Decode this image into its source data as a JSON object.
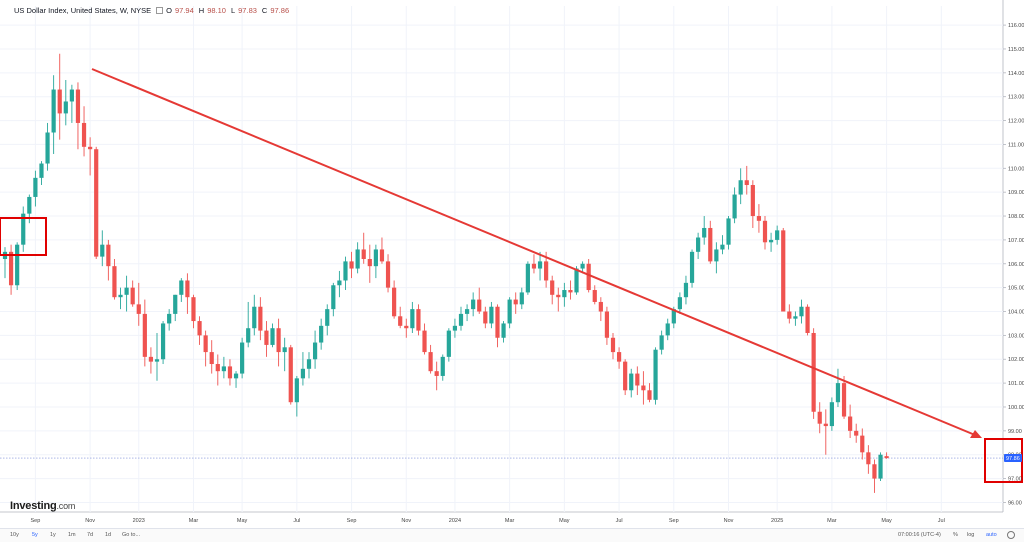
{
  "header": {
    "symbol": "US Dollar Index, United States, W, NYSE",
    "open_label": "O",
    "open": "97.94",
    "high_label": "H",
    "high": "98.10",
    "low_label": "L",
    "low": "97.83",
    "close_label": "C",
    "close": "97.86"
  },
  "colors": {
    "up": "#26a69a",
    "down": "#ef5350",
    "trendline": "#e53935",
    "highlight": "#e00000",
    "price_badge": "#2962ff"
  },
  "logo": {
    "text": "Investing",
    "suffix": ".com"
  },
  "toolbar": {
    "ranges": [
      "10y",
      "5y",
      "1y",
      "1m",
      "7d",
      "1d"
    ],
    "active_range": "5y",
    "goto": "Go to...",
    "time": "07:00:16 (UTC-4)",
    "pct": "%",
    "log": "log",
    "auto": "auto"
  },
  "chart_data": {
    "type": "candlestick",
    "timeframe": "weekly",
    "ylim": [
      95.6,
      116.8
    ],
    "y_ticks": [
      96.0,
      97.0,
      98.0,
      99.0,
      100.0,
      101.0,
      102.0,
      103.0,
      104.0,
      105.0,
      106.0,
      107.0,
      108.0,
      109.0,
      110.0,
      111.0,
      112.0,
      113.0,
      114.0,
      115.0,
      116.0
    ],
    "y_tick_labels": [
      "96.00",
      "97.00",
      "98.00",
      "99.00",
      "100.00",
      "101.00",
      "102.00",
      "103.00",
      "104.00",
      "105.00",
      "106.00",
      "107.00",
      "108.00",
      "109.00",
      "110.00",
      "111.00",
      "112.00",
      "113.00",
      "114.00",
      "115.00",
      "116.00"
    ],
    "x_ticks": [
      {
        "label": "Sep",
        "week": 5
      },
      {
        "label": "Nov",
        "week": 14
      },
      {
        "label": "2023",
        "week": 22
      },
      {
        "label": "Mar",
        "week": 31
      },
      {
        "label": "May",
        "week": 39
      },
      {
        "label": "Jul",
        "week": 48
      },
      {
        "label": "Sep",
        "week": 57
      },
      {
        "label": "Nov",
        "week": 66
      },
      {
        "label": "2024",
        "week": 74
      },
      {
        "label": "Mar",
        "week": 83
      },
      {
        "label": "May",
        "week": 92
      },
      {
        "label": "Jul",
        "week": 101
      },
      {
        "label": "Sep",
        "week": 110
      },
      {
        "label": "Nov",
        "week": 119
      },
      {
        "label": "2025",
        "week": 127
      },
      {
        "label": "Mar",
        "week": 136
      },
      {
        "label": "May",
        "week": 145
      },
      {
        "label": "Jul",
        "week": 154
      }
    ],
    "last_price": 97.86,
    "last_price_label": "97.86",
    "candles": [
      [
        106.2,
        106.7,
        105.4,
        106.5
      ],
      [
        106.5,
        106.8,
        104.7,
        105.1
      ],
      [
        105.1,
        106.9,
        104.9,
        106.8
      ],
      [
        106.8,
        108.4,
        106.5,
        108.1
      ],
      [
        108.1,
        108.9,
        107.7,
        108.8
      ],
      [
        108.8,
        109.9,
        108.4,
        109.6
      ],
      [
        109.6,
        110.3,
        109.3,
        110.2
      ],
      [
        110.2,
        111.9,
        109.9,
        111.5
      ],
      [
        111.5,
        113.9,
        110.6,
        113.3
      ],
      [
        113.3,
        114.8,
        111.2,
        112.3
      ],
      [
        112.3,
        113.7,
        111.8,
        112.8
      ],
      [
        112.8,
        113.5,
        111.9,
        113.3
      ],
      [
        113.3,
        113.6,
        110.8,
        111.9
      ],
      [
        111.9,
        112.6,
        110.5,
        110.9
      ],
      [
        110.9,
        111.3,
        109.7,
        110.8
      ],
      [
        110.8,
        110.9,
        106.2,
        106.3
      ],
      [
        106.3,
        107.4,
        105.9,
        106.8
      ],
      [
        106.8,
        107.0,
        105.3,
        105.9
      ],
      [
        105.9,
        106.2,
        104.5,
        104.6
      ],
      [
        104.6,
        105.0,
        104.1,
        104.7
      ],
      [
        104.7,
        105.5,
        104.0,
        105.0
      ],
      [
        105.0,
        105.3,
        104.2,
        104.3
      ],
      [
        104.3,
        105.2,
        103.4,
        103.9
      ],
      [
        103.9,
        104.5,
        101.7,
        102.1
      ],
      [
        102.1,
        102.5,
        101.4,
        101.9
      ],
      [
        101.9,
        103.1,
        101.1,
        102.0
      ],
      [
        102.0,
        103.6,
        101.8,
        103.5
      ],
      [
        103.5,
        104.1,
        103.2,
        103.9
      ],
      [
        103.9,
        104.7,
        103.6,
        104.7
      ],
      [
        104.7,
        105.4,
        104.4,
        105.3
      ],
      [
        105.3,
        105.6,
        103.9,
        104.6
      ],
      [
        104.6,
        104.7,
        103.3,
        103.6
      ],
      [
        103.6,
        103.8,
        102.6,
        103.0
      ],
      [
        103.0,
        103.2,
        101.7,
        102.3
      ],
      [
        102.3,
        102.8,
        101.4,
        101.8
      ],
      [
        101.8,
        102.2,
        100.9,
        101.5
      ],
      [
        101.5,
        102.1,
        101.2,
        101.7
      ],
      [
        101.7,
        102.0,
        100.9,
        101.2
      ],
      [
        101.2,
        101.5,
        100.8,
        101.4
      ],
      [
        101.4,
        102.9,
        101.2,
        102.7
      ],
      [
        102.7,
        104.4,
        102.5,
        103.3
      ],
      [
        103.3,
        104.7,
        103.0,
        104.2
      ],
      [
        104.2,
        104.6,
        102.8,
        103.2
      ],
      [
        103.2,
        103.6,
        102.1,
        102.6
      ],
      [
        102.6,
        103.5,
        102.5,
        103.3
      ],
      [
        103.3,
        103.7,
        101.7,
        102.3
      ],
      [
        102.3,
        102.9,
        101.5,
        102.5
      ],
      [
        102.5,
        102.6,
        100.1,
        100.2
      ],
      [
        100.2,
        101.3,
        99.6,
        101.2
      ],
      [
        101.2,
        102.3,
        100.9,
        101.6
      ],
      [
        101.6,
        102.3,
        101.2,
        102.0
      ],
      [
        102.0,
        103.2,
        101.6,
        102.7
      ],
      [
        102.7,
        103.7,
        102.4,
        103.4
      ],
      [
        103.4,
        104.3,
        103.0,
        104.1
      ],
      [
        104.1,
        105.2,
        103.8,
        105.1
      ],
      [
        105.1,
        105.7,
        104.6,
        105.3
      ],
      [
        105.3,
        106.3,
        104.9,
        106.1
      ],
      [
        106.1,
        106.5,
        105.4,
        105.8
      ],
      [
        105.8,
        106.9,
        105.6,
        106.6
      ],
      [
        106.6,
        107.3,
        106.0,
        106.2
      ],
      [
        106.2,
        106.8,
        105.2,
        105.9
      ],
      [
        105.9,
        106.8,
        105.4,
        106.6
      ],
      [
        106.6,
        107.1,
        106.0,
        106.1
      ],
      [
        106.1,
        106.4,
        104.8,
        105.0
      ],
      [
        105.0,
        105.3,
        103.7,
        103.8
      ],
      [
        103.8,
        104.2,
        103.3,
        103.4
      ],
      [
        103.4,
        103.7,
        102.9,
        103.3
      ],
      [
        103.3,
        104.4,
        103.1,
        104.1
      ],
      [
        104.1,
        104.3,
        103.0,
        103.2
      ],
      [
        103.2,
        103.5,
        102.2,
        102.3
      ],
      [
        102.3,
        102.6,
        101.4,
        101.5
      ],
      [
        101.5,
        101.9,
        100.7,
        101.3
      ],
      [
        101.3,
        102.2,
        101.1,
        102.1
      ],
      [
        102.1,
        103.3,
        101.9,
        103.2
      ],
      [
        103.2,
        103.7,
        102.9,
        103.4
      ],
      [
        103.4,
        104.2,
        103.2,
        103.9
      ],
      [
        103.9,
        104.3,
        103.6,
        104.1
      ],
      [
        104.1,
        104.8,
        103.8,
        104.5
      ],
      [
        104.5,
        105.0,
        103.9,
        104.0
      ],
      [
        104.0,
        104.2,
        103.3,
        103.5
      ],
      [
        103.5,
        104.4,
        103.3,
        104.2
      ],
      [
        104.2,
        104.3,
        102.5,
        102.9
      ],
      [
        102.9,
        103.6,
        102.7,
        103.5
      ],
      [
        103.5,
        104.6,
        103.3,
        104.5
      ],
      [
        104.5,
        104.8,
        103.9,
        104.3
      ],
      [
        104.3,
        105.0,
        104.1,
        104.8
      ],
      [
        104.8,
        106.1,
        104.7,
        106.0
      ],
      [
        106.0,
        106.4,
        105.6,
        105.8
      ],
      [
        105.8,
        106.5,
        105.3,
        106.1
      ],
      [
        106.1,
        106.5,
        105.0,
        105.3
      ],
      [
        105.3,
        105.5,
        104.3,
        104.7
      ],
      [
        104.7,
        105.0,
        104.0,
        104.6
      ],
      [
        104.6,
        105.2,
        104.2,
        104.9
      ],
      [
        104.9,
        105.3,
        104.5,
        104.8
      ],
      [
        104.8,
        105.9,
        104.7,
        105.8
      ],
      [
        105.8,
        106.1,
        105.6,
        106.0
      ],
      [
        106.0,
        106.2,
        104.8,
        104.9
      ],
      [
        104.9,
        105.1,
        104.3,
        104.4
      ],
      [
        104.4,
        104.6,
        103.6,
        104.0
      ],
      [
        104.0,
        104.2,
        102.6,
        102.9
      ],
      [
        102.9,
        103.1,
        102.0,
        102.3
      ],
      [
        102.3,
        102.5,
        101.6,
        101.9
      ],
      [
        101.9,
        102.0,
        100.5,
        100.7
      ],
      [
        100.7,
        101.6,
        100.4,
        101.4
      ],
      [
        101.4,
        101.7,
        100.5,
        100.9
      ],
      [
        100.9,
        101.5,
        100.1,
        100.7
      ],
      [
        100.7,
        101.0,
        100.2,
        100.3
      ],
      [
        100.3,
        102.5,
        100.1,
        102.4
      ],
      [
        102.4,
        103.2,
        102.2,
        103.0
      ],
      [
        103.0,
        103.7,
        102.8,
        103.5
      ],
      [
        103.5,
        104.2,
        103.3,
        104.1
      ],
      [
        104.1,
        104.8,
        103.9,
        104.6
      ],
      [
        104.6,
        105.5,
        104.3,
        105.2
      ],
      [
        105.2,
        106.6,
        105.0,
        106.5
      ],
      [
        106.5,
        107.3,
        106.2,
        107.1
      ],
      [
        107.1,
        108.0,
        106.8,
        107.5
      ],
      [
        107.5,
        107.8,
        106.0,
        106.1
      ],
      [
        106.1,
        106.9,
        105.6,
        106.6
      ],
      [
        106.6,
        107.2,
        106.4,
        106.8
      ],
      [
        106.8,
        108.0,
        106.6,
        107.9
      ],
      [
        107.9,
        109.2,
        107.7,
        108.9
      ],
      [
        108.9,
        110.0,
        108.5,
        109.5
      ],
      [
        109.5,
        110.1,
        108.9,
        109.3
      ],
      [
        109.3,
        109.5,
        107.5,
        108.0
      ],
      [
        108.0,
        108.5,
        107.3,
        107.8
      ],
      [
        107.8,
        108.0,
        106.6,
        106.9
      ],
      [
        106.9,
        107.3,
        106.5,
        107.0
      ],
      [
        107.0,
        107.6,
        106.8,
        107.4
      ],
      [
        107.4,
        107.5,
        104.0,
        104.0
      ],
      [
        104.0,
        104.3,
        103.5,
        103.7
      ],
      [
        103.7,
        104.0,
        103.4,
        103.8
      ],
      [
        103.8,
        104.5,
        103.5,
        104.2
      ],
      [
        104.2,
        104.3,
        103.0,
        103.1
      ],
      [
        103.1,
        103.3,
        99.5,
        99.8
      ],
      [
        99.8,
        100.2,
        98.9,
        99.3
      ],
      [
        99.3,
        99.9,
        98.0,
        99.2
      ],
      [
        99.2,
        100.4,
        99.0,
        100.2
      ],
      [
        100.2,
        101.6,
        100.0,
        101.0
      ],
      [
        101.0,
        101.3,
        99.5,
        99.6
      ],
      [
        99.6,
        100.1,
        98.7,
        99.0
      ],
      [
        99.0,
        99.3,
        98.5,
        98.8
      ],
      [
        98.8,
        99.1,
        97.8,
        98.1
      ],
      [
        98.1,
        98.4,
        97.2,
        97.6
      ],
      [
        97.6,
        97.8,
        96.4,
        97.0
      ],
      [
        97.0,
        98.1,
        96.9,
        98.0
      ],
      [
        97.94,
        98.1,
        97.83,
        97.86
      ]
    ]
  }
}
